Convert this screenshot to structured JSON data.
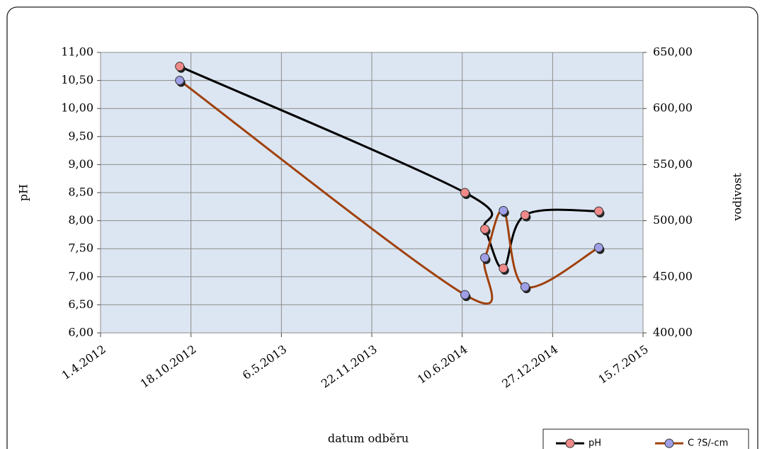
{
  "chart_data": {
    "type": "line",
    "x_label": "datum odběru",
    "y_label": "pH",
    "y2_label": "vodivost",
    "x": [
      "2012-09-23",
      "2014-06-16",
      "2014-07-30",
      "2014-09-09",
      "2014-10-27",
      "2015-04-08"
    ],
    "series": [
      {
        "name": "pH",
        "color": "#000000",
        "marker_color": "#f08a8a",
        "values": [
          10.75,
          8.5,
          7.85,
          7.15,
          8.1,
          8.17
        ]
      },
      {
        "name": "C ?S/-cm",
        "color": "#a0410d",
        "marker_color": "#9f9fe8",
        "axis": "y2",
        "values": [
          625,
          434,
          467,
          509,
          441,
          476
        ]
      }
    ],
    "xlim": [
      "2012-04-01",
      "2015-07-15"
    ],
    "xticks": [
      {
        "value": "2012-04-01",
        "label": "1.4.2012"
      },
      {
        "value": "2012-10-18",
        "label": "18.10.2012"
      },
      {
        "value": "2013-05-06",
        "label": "6.5.2013"
      },
      {
        "value": "2013-11-22",
        "label": "22.11.2013"
      },
      {
        "value": "2014-06-10",
        "label": "10.6.2014"
      },
      {
        "value": "2014-12-27",
        "label": "27.12.2014"
      },
      {
        "value": "2015-07-15",
        "label": "15.7.2015"
      }
    ],
    "ylim": [
      6,
      11
    ],
    "yticks": [
      {
        "value": 6,
        "label": "6,00"
      },
      {
        "value": 6.5,
        "label": "6,50"
      },
      {
        "value": 7,
        "label": "7,00"
      },
      {
        "value": 7.5,
        "label": "7,50"
      },
      {
        "value": 8,
        "label": "8,00"
      },
      {
        "value": 8.5,
        "label": "8,50"
      },
      {
        "value": 9,
        "label": "9,00"
      },
      {
        "value": 9.5,
        "label": "9,50"
      },
      {
        "value": 10,
        "label": "10,00"
      },
      {
        "value": 10.5,
        "label": "10,50"
      },
      {
        "value": 11,
        "label": "11,00"
      }
    ],
    "y2lim": [
      400,
      650
    ],
    "y2ticks": [
      {
        "value": 400,
        "label": "400,00"
      },
      {
        "value": 450,
        "label": "450,00"
      },
      {
        "value": 500,
        "label": "500,00"
      },
      {
        "value": 550,
        "label": "550,00"
      },
      {
        "value": 600,
        "label": "600,00"
      },
      {
        "value": 650,
        "label": "650,00"
      }
    ],
    "grid": true,
    "legend": "bottom-right",
    "plot_background": "#dce6f2"
  }
}
